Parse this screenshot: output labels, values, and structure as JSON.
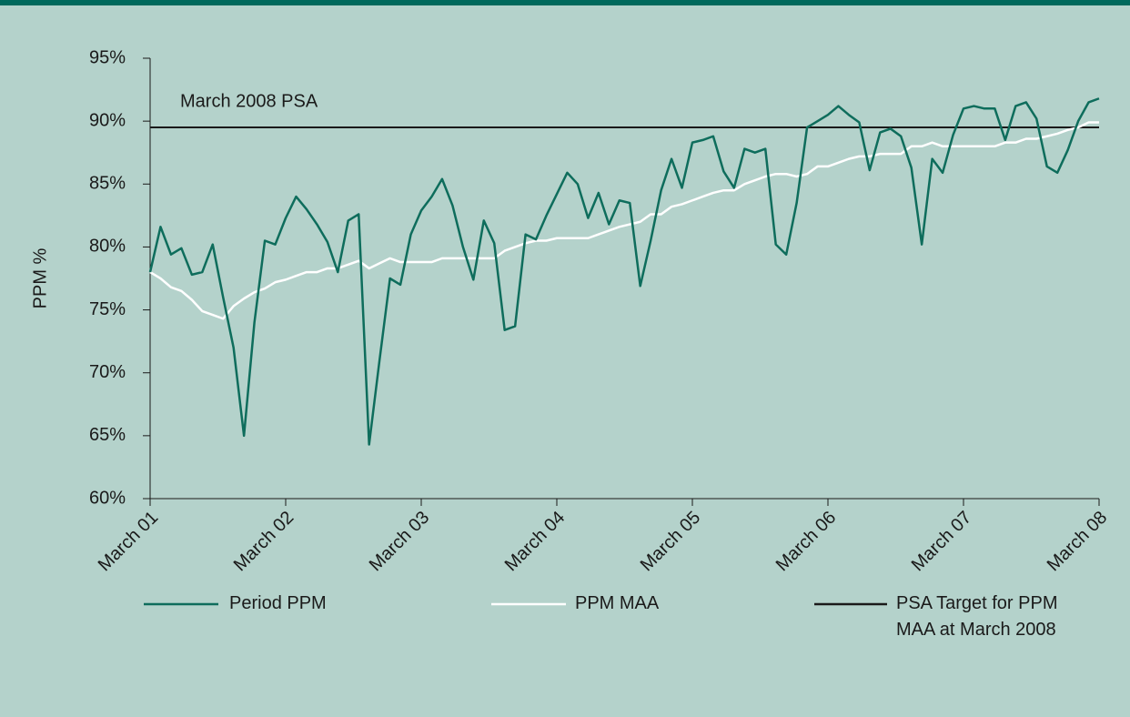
{
  "chart_data": {
    "type": "line",
    "y_label": "PPM %",
    "categories": [
      "March 01",
      null,
      null,
      null,
      null,
      null,
      null,
      null,
      null,
      null,
      null,
      null,
      null,
      "March 02",
      null,
      null,
      null,
      null,
      null,
      null,
      null,
      null,
      null,
      null,
      null,
      null,
      "March 03",
      null,
      null,
      null,
      null,
      null,
      null,
      null,
      null,
      null,
      null,
      null,
      null,
      "March 04",
      null,
      null,
      null,
      null,
      null,
      null,
      null,
      null,
      null,
      null,
      null,
      null,
      "March 05",
      null,
      null,
      null,
      null,
      null,
      null,
      null,
      null,
      null,
      null,
      null,
      null,
      "March  06",
      null,
      null,
      null,
      null,
      null,
      null,
      null,
      null,
      null,
      null,
      null,
      null,
      "March 07",
      null,
      null,
      null,
      null,
      null,
      null,
      null,
      null,
      null,
      null,
      null,
      null,
      "March 08"
    ],
    "series": [
      {
        "name": "Period PPM",
        "color": "#0e6d5c",
        "values": [
          78,
          81.6,
          79.4,
          79.9,
          77.8,
          78,
          80.2,
          76,
          72,
          65,
          74,
          80.5,
          80.2,
          82.3,
          84,
          83,
          81.8,
          80.4,
          78,
          82.1,
          82.6,
          64.3,
          71,
          77.5,
          77,
          81,
          82.9,
          84,
          85.4,
          83.3,
          80,
          77.4,
          82.1,
          80.3,
          73.4,
          73.7,
          81,
          80.6,
          82.5,
          84.2,
          85.9,
          85,
          82.3,
          84.3,
          81.8,
          83.7,
          83.5,
          76.9,
          80.5,
          84.5,
          87,
          84.7,
          88.3,
          88.5,
          88.8,
          86,
          84.7,
          87.8,
          87.5,
          87.8,
          80.2,
          79.4,
          83.5,
          89.5,
          90,
          90.5,
          91.2,
          90.5,
          89.9,
          86.1,
          89.1,
          89.4,
          88.8,
          86.3,
          80.2,
          87,
          85.9,
          88.9,
          91,
          91.2,
          91,
          91,
          88.5,
          91.2,
          91.5,
          90.2,
          86.4,
          85.9,
          87.7,
          90,
          91.5,
          91.8
        ]
      },
      {
        "name": "PPM MAA",
        "color": "#ffffff",
        "values": [
          78,
          77.5,
          76.8,
          76.5,
          75.8,
          74.9,
          74.6,
          74.3,
          75.3,
          75.9,
          76.4,
          76.7,
          77.2,
          77.4,
          77.7,
          78,
          78,
          78.3,
          78.3,
          78.6,
          78.9,
          78.3,
          78.7,
          79.1,
          78.8,
          78.8,
          78.8,
          78.8,
          79.1,
          79.1,
          79.1,
          79.1,
          79.1,
          79.1,
          79.7,
          80,
          80.3,
          80.5,
          80.5,
          80.7,
          80.7,
          80.7,
          80.7,
          81,
          81.3,
          81.6,
          81.8,
          82,
          82.6,
          82.6,
          83.2,
          83.4,
          83.7,
          84,
          84.3,
          84.5,
          84.5,
          85,
          85.3,
          85.6,
          85.8,
          85.8,
          85.6,
          85.8,
          86.4,
          86.4,
          86.7,
          87,
          87.2,
          87.2,
          87.4,
          87.4,
          87.4,
          88,
          88,
          88.3,
          88,
          88,
          88,
          88,
          88,
          88,
          88.3,
          88.3,
          88.6,
          88.6,
          88.8,
          89,
          89.3,
          89.5,
          89.9,
          89.9
        ]
      }
    ],
    "target": {
      "name": "PSA Target for PPM MAA at March 2008",
      "label": "March 2008 PSA",
      "value": 89.5,
      "color": "#1a1a1a"
    },
    "ylim": [
      60,
      95
    ],
    "yticks": [
      {
        "value": 60,
        "label": "60%"
      },
      {
        "value": 65,
        "label": "65%"
      },
      {
        "value": 70,
        "label": "70%"
      },
      {
        "value": 75,
        "label": "75%"
      },
      {
        "value": 80,
        "label": "80%"
      },
      {
        "value": 85,
        "label": "85%"
      },
      {
        "value": 90,
        "label": "90%"
      },
      {
        "value": 95,
        "label": "95%"
      }
    ],
    "grid": false,
    "legend": "bottom"
  }
}
